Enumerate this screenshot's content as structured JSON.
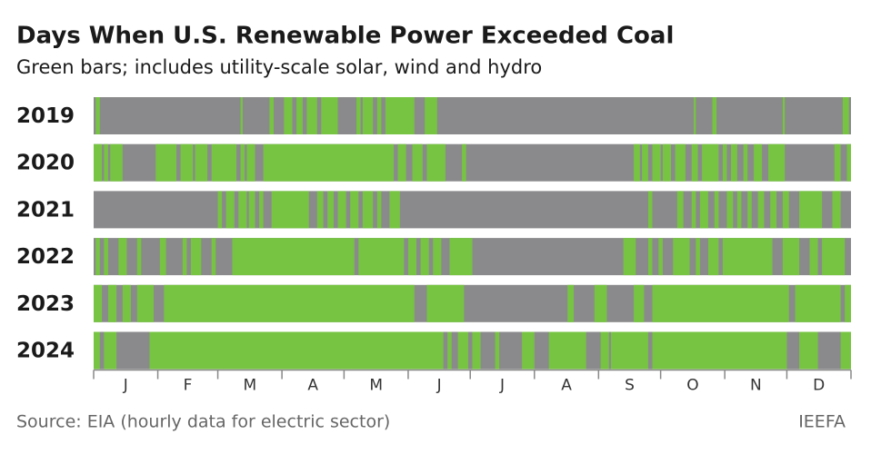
{
  "chart_data": {
    "type": "strip",
    "title": "Days When U.S. Renewable Power Exceeded Coal",
    "subtitle": "Green bars; includes utility-scale solar, wind and hydro",
    "source": "Source: EIA (hourly data for electric sector)",
    "credit": "IEEFA",
    "on_color": "#76c442",
    "off_color": "#8a8a8c",
    "xlim": [
      0,
      366
    ],
    "xticks": [
      0,
      31,
      60,
      91,
      121,
      152,
      182,
      213,
      244,
      274,
      305,
      335,
      366
    ],
    "categories": [
      "J",
      "F",
      "M",
      "A",
      "M",
      "J",
      "J",
      "A",
      "S",
      "O",
      "N",
      "D"
    ],
    "series": [
      {
        "name": "2019",
        "runs": [
          [
            1,
            3
          ],
          [
            71,
            72
          ],
          [
            85,
            87
          ],
          [
            92,
            96
          ],
          [
            98,
            101
          ],
          [
            103,
            108
          ],
          [
            110,
            118
          ],
          [
            127,
            129
          ],
          [
            130,
            135
          ],
          [
            137,
            139
          ],
          [
            141,
            155
          ],
          [
            160,
            166
          ],
          [
            290,
            291
          ],
          [
            299,
            301
          ],
          [
            333,
            334
          ],
          [
            362,
            365
          ]
        ]
      },
      {
        "name": "2020",
        "runs": [
          [
            0,
            4
          ],
          [
            5,
            7
          ],
          [
            8,
            14
          ],
          [
            30,
            40
          ],
          [
            42,
            48
          ],
          [
            49,
            55
          ],
          [
            57,
            69
          ],
          [
            71,
            73
          ],
          [
            74,
            78
          ],
          [
            82,
            145
          ],
          [
            147,
            151
          ],
          [
            154,
            159
          ],
          [
            161,
            170
          ],
          [
            178,
            180
          ],
          [
            261,
            264
          ],
          [
            265,
            268
          ],
          [
            270,
            274
          ],
          [
            275,
            279
          ],
          [
            281,
            286
          ],
          [
            289,
            292
          ],
          [
            294,
            302
          ],
          [
            304,
            306
          ],
          [
            308,
            311
          ],
          [
            314,
            316
          ],
          [
            319,
            323
          ],
          [
            326,
            334
          ],
          [
            358,
            361
          ],
          [
            364,
            366
          ]
        ]
      },
      {
        "name": "2021",
        "runs": [
          [
            60,
            62
          ],
          [
            64,
            68
          ],
          [
            70,
            74
          ],
          [
            75,
            78
          ],
          [
            80,
            82
          ],
          [
            86,
            104
          ],
          [
            108,
            111
          ],
          [
            113,
            116
          ],
          [
            118,
            122
          ],
          [
            124,
            128
          ],
          [
            130,
            135
          ],
          [
            137,
            139
          ],
          [
            143,
            148
          ],
          [
            268,
            270
          ],
          [
            282,
            285
          ],
          [
            289,
            291
          ],
          [
            293,
            297
          ],
          [
            300,
            302
          ],
          [
            306,
            309
          ],
          [
            311,
            313
          ],
          [
            316,
            318
          ],
          [
            321,
            324
          ],
          [
            327,
            330
          ],
          [
            333,
            336
          ],
          [
            341,
            352
          ],
          [
            357,
            361
          ]
        ]
      },
      {
        "name": "2022",
        "runs": [
          [
            1,
            3
          ],
          [
            5,
            7
          ],
          [
            12,
            16
          ],
          [
            21,
            23
          ],
          [
            32,
            35
          ],
          [
            43,
            45
          ],
          [
            47,
            52
          ],
          [
            57,
            59
          ],
          [
            67,
            126
          ],
          [
            128,
            150
          ],
          [
            152,
            156
          ],
          [
            158,
            162
          ],
          [
            164,
            168
          ],
          [
            172,
            183
          ],
          [
            256,
            262
          ],
          [
            268,
            270
          ],
          [
            273,
            275
          ],
          [
            280,
            288
          ],
          [
            291,
            293
          ],
          [
            297,
            302
          ],
          [
            304,
            328
          ],
          [
            333,
            341
          ],
          [
            346,
            350
          ],
          [
            352,
            363
          ]
        ]
      },
      {
        "name": "2023",
        "runs": [
          [
            0,
            4
          ],
          [
            7,
            11
          ],
          [
            14,
            18
          ],
          [
            21,
            29
          ],
          [
            34,
            155
          ],
          [
            161,
            179
          ],
          [
            229,
            232
          ],
          [
            242,
            248
          ],
          [
            261,
            266
          ],
          [
            270,
            336
          ],
          [
            339,
            361
          ],
          [
            363,
            366
          ]
        ]
      },
      {
        "name": "2024",
        "runs": [
          [
            0,
            3
          ],
          [
            5,
            11
          ],
          [
            27,
            169
          ],
          [
            171,
            173
          ],
          [
            176,
            181
          ],
          [
            183,
            187
          ],
          [
            194,
            196
          ],
          [
            207,
            213
          ],
          [
            220,
            238
          ],
          [
            245,
            249
          ],
          [
            250,
            268
          ],
          [
            270,
            335
          ],
          [
            341,
            350
          ],
          [
            361,
            366
          ]
        ]
      }
    ]
  }
}
